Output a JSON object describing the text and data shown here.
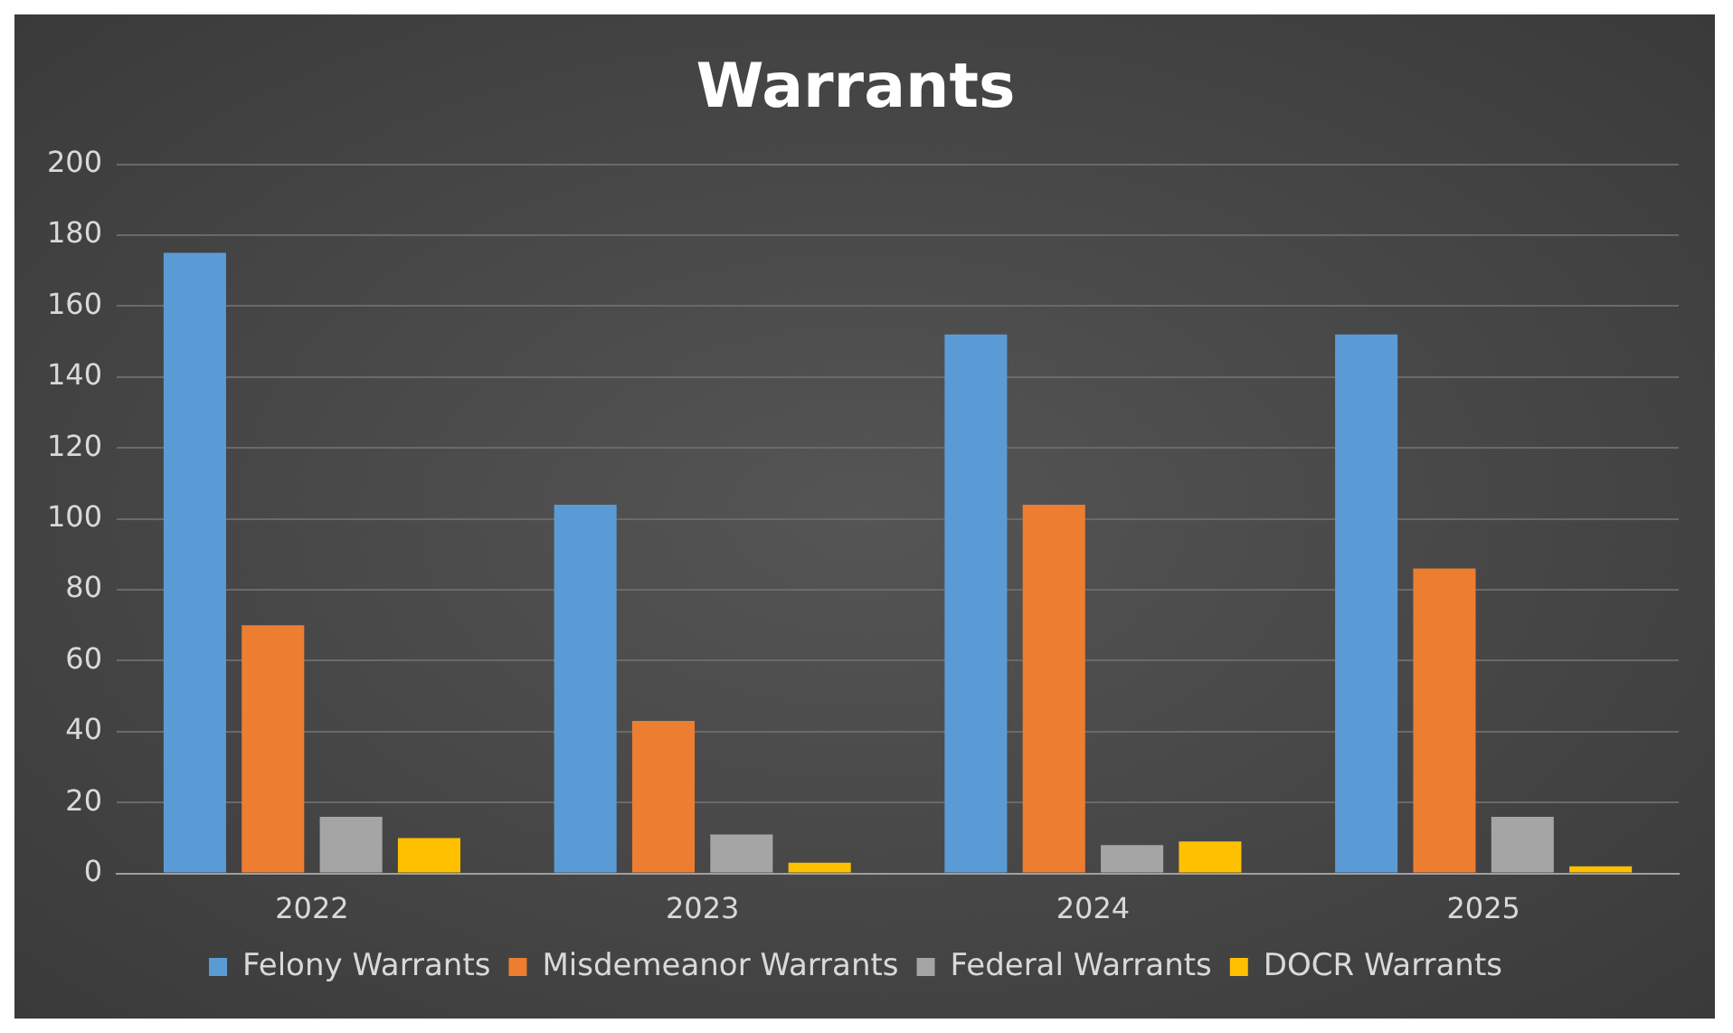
{
  "chart_data": {
    "type": "bar",
    "title": "Warrants",
    "categories": [
      "2022",
      "2023",
      "2024",
      "2025"
    ],
    "series": [
      {
        "name": "Felony Warrants",
        "color": "#5b9bd5",
        "values": [
          175,
          104,
          152,
          152
        ]
      },
      {
        "name": "Misdemeanor Warrants",
        "color": "#ed7d31",
        "values": [
          70,
          43,
          104,
          86
        ]
      },
      {
        "name": "Federal Warrants",
        "color": "#a5a5a5",
        "values": [
          16,
          11,
          8,
          16
        ]
      },
      {
        "name": "DOCR Warrants",
        "color": "#ffc000",
        "values": [
          10,
          3,
          9,
          2
        ]
      }
    ],
    "ylim": [
      0,
      200
    ],
    "yticks": [
      0,
      20,
      40,
      60,
      80,
      100,
      120,
      140,
      160,
      180,
      200
    ],
    "grid": "y",
    "legend": "bottom"
  }
}
